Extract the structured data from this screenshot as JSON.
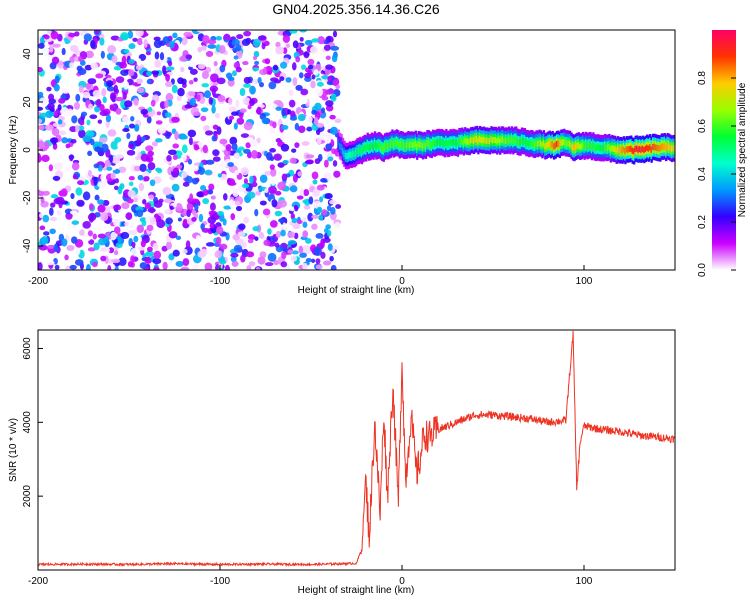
{
  "title": "GN04.2025.356.14.36.C26",
  "chart_data": [
    {
      "type": "heatmap",
      "xlabel": "Height of straight line (km)",
      "ylabel": "Frequency (Hz)",
      "xlim": [
        -200,
        150
      ],
      "ylim": [
        -50,
        50
      ],
      "x_ticks": [
        "-200",
        "-100",
        "0",
        "100"
      ],
      "y_ticks": [
        "-40",
        "-20",
        "0",
        "20",
        "40"
      ],
      "colorbar": {
        "label": "Normalized spectral amplitude",
        "range": [
          0,
          1
        ],
        "ticks": [
          "0.0",
          "0.2",
          "0.4",
          "0.6",
          "0.8"
        ],
        "colors": [
          "#ffffff",
          "#cc00ff",
          "#3300ff",
          "#0099ff",
          "#00ffcc",
          "#00ff33",
          "#99ff00",
          "#ffcc00",
          "#ff3300",
          "#ff0066"
        ]
      },
      "noise_region_x": [
        -200,
        -35
      ],
      "ridge": {
        "x": [
          -35,
          -33,
          -30,
          -25,
          -20,
          -15,
          -10,
          -5,
          0,
          10,
          20,
          30,
          40,
          50,
          60,
          70,
          80,
          85,
          90,
          95,
          100,
          110,
          120,
          130,
          140,
          150
        ],
        "freq": [
          3,
          0,
          -3,
          -1,
          1,
          2,
          1,
          3,
          2,
          2,
          3,
          3,
          4,
          4,
          4,
          3,
          2,
          2,
          3,
          1,
          2,
          1,
          0,
          0,
          1,
          1
        ],
        "amplitude": [
          0.3,
          0.35,
          0.45,
          0.5,
          0.55,
          0.55,
          0.6,
          0.6,
          0.6,
          0.65,
          0.55,
          0.55,
          0.75,
          0.7,
          0.6,
          0.55,
          0.75,
          0.9,
          0.6,
          0.8,
          0.6,
          0.55,
          0.8,
          0.95,
          0.85,
          0.75
        ]
      },
      "grid": false
    },
    {
      "type": "line",
      "xlabel": "Height of straight line (km)",
      "ylabel": "SNR (10 * v/v)",
      "xlim": [
        -200,
        150
      ],
      "ylim": [
        0,
        6500
      ],
      "x_ticks": [
        "-200",
        "-100",
        "0",
        "100"
      ],
      "y_ticks": [
        "2000",
        "4000",
        "6000"
      ],
      "color": "#ee3322",
      "series": [
        {
          "x": [
            -200,
            -175,
            -150,
            -125,
            -100,
            -75,
            -50,
            -25,
            -22,
            -20,
            -18,
            -15,
            -12,
            -10,
            -8,
            -5,
            -2,
            0,
            2,
            5,
            8,
            10,
            12,
            15,
            20,
            25,
            30,
            40,
            50,
            60,
            70,
            80,
            90,
            94,
            96,
            98,
            100,
            110,
            120,
            130,
            140,
            150
          ],
          "y": [
            150,
            160,
            150,
            170,
            150,
            160,
            150,
            180,
            600,
            2500,
            900,
            4000,
            1500,
            4300,
            2000,
            5000,
            1800,
            5700,
            2400,
            4200,
            2600,
            3000,
            3700,
            3600,
            3800,
            3900,
            4000,
            4200,
            4200,
            4150,
            4100,
            4000,
            4050,
            6400,
            2200,
            3500,
            3900,
            3800,
            3750,
            3650,
            3600,
            3550
          ]
        }
      ],
      "grid": false
    }
  ]
}
